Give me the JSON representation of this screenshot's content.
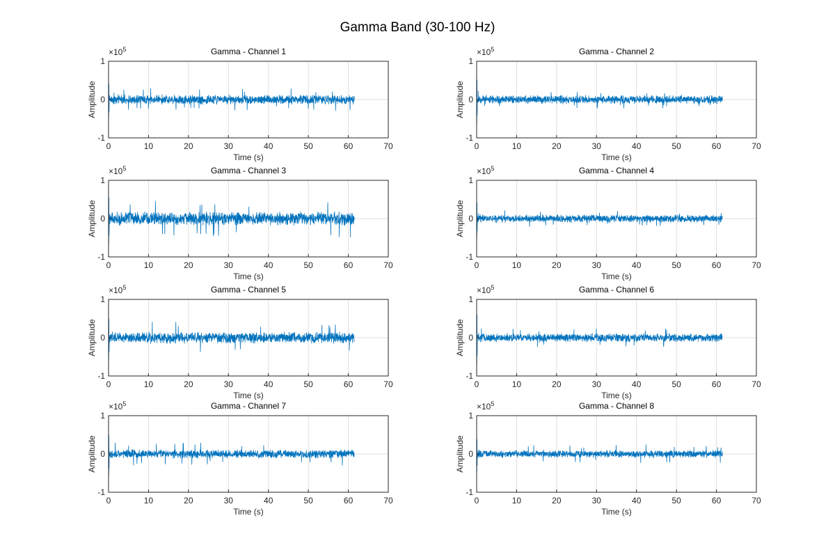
{
  "figure": {
    "title": "Gamma Band (30-100 Hz)",
    "line_color": "#0072BD",
    "grid_color": "#dedede"
  },
  "chart_data": [
    {
      "type": "line",
      "title": "Gamma - Channel 1",
      "xlabel": "Time (s)",
      "ylabel": "Amplitude",
      "y_exponent_label": "×10",
      "y_exponent": "5",
      "xlim": [
        0,
        70
      ],
      "ylim": [
        -1,
        1
      ],
      "xticks": [
        0,
        10,
        20,
        30,
        40,
        50,
        60,
        70
      ],
      "yticks": [
        -1,
        0,
        1
      ],
      "grid": true,
      "signal_duration_s": 61.5,
      "signal_envelope": {
        "typical_amplitude": 0.1,
        "peak_amplitude": 0.3,
        "initial_transient": 0.6
      },
      "series": [
        {
          "values": []
        }
      ]
    },
    {
      "type": "line",
      "title": "Gamma - Channel 2",
      "xlabel": "Time (s)",
      "ylabel": "Amplitude",
      "y_exponent_label": "×10",
      "y_exponent": "5",
      "xlim": [
        0,
        70
      ],
      "ylim": [
        -1,
        1
      ],
      "xticks": [
        0,
        10,
        20,
        30,
        40,
        50,
        60,
        70
      ],
      "yticks": [
        -1,
        0,
        1
      ],
      "grid": true,
      "signal_duration_s": 61.5,
      "signal_envelope": {
        "typical_amplitude": 0.09,
        "peak_amplitude": 0.23,
        "initial_transient": 0.75
      },
      "series": [
        {
          "values": []
        }
      ]
    },
    {
      "type": "line",
      "title": "Gamma - Channel 3",
      "xlabel": "Time (s)",
      "ylabel": "Amplitude",
      "y_exponent_label": "×10",
      "y_exponent": "5",
      "xlim": [
        0,
        70
      ],
      "ylim": [
        -1,
        1
      ],
      "xticks": [
        0,
        10,
        20,
        30,
        40,
        50,
        60,
        70
      ],
      "yticks": [
        -1,
        0,
        1
      ],
      "grid": true,
      "signal_duration_s": 61.5,
      "signal_envelope": {
        "typical_amplitude": 0.14,
        "peak_amplitude": 0.5,
        "initial_transient": 0.8
      },
      "series": [
        {
          "values": []
        }
      ]
    },
    {
      "type": "line",
      "title": "Gamma - Channel 4",
      "xlabel": "Time (s)",
      "ylabel": "Amplitude",
      "y_exponent_label": "×10",
      "y_exponent": "5",
      "xlim": [
        0,
        70
      ],
      "ylim": [
        -1,
        1
      ],
      "xticks": [
        0,
        10,
        20,
        30,
        40,
        50,
        60,
        70
      ],
      "yticks": [
        -1,
        0,
        1
      ],
      "grid": true,
      "signal_duration_s": 61.5,
      "signal_envelope": {
        "typical_amplitude": 0.08,
        "peak_amplitude": 0.22,
        "initial_transient": 0.6
      },
      "series": [
        {
          "values": []
        }
      ]
    },
    {
      "type": "line",
      "title": "Gamma - Channel 5",
      "xlabel": "Time (s)",
      "ylabel": "Amplitude",
      "y_exponent_label": "×10",
      "y_exponent": "5",
      "xlim": [
        0,
        70
      ],
      "ylim": [
        -1,
        1
      ],
      "xticks": [
        0,
        10,
        20,
        30,
        40,
        50,
        60,
        70
      ],
      "yticks": [
        -1,
        0,
        1
      ],
      "grid": true,
      "signal_duration_s": 61.5,
      "signal_envelope": {
        "typical_amplitude": 0.12,
        "peak_amplitude": 0.45,
        "initial_transient": 0.7
      },
      "series": [
        {
          "values": []
        }
      ]
    },
    {
      "type": "line",
      "title": "Gamma - Channel 6",
      "xlabel": "Time (s)",
      "ylabel": "Amplitude",
      "y_exponent_label": "×10",
      "y_exponent": "5",
      "xlim": [
        0,
        70
      ],
      "ylim": [
        -1,
        1
      ],
      "xticks": [
        0,
        10,
        20,
        30,
        40,
        50,
        60,
        70
      ],
      "yticks": [
        -1,
        0,
        1
      ],
      "grid": true,
      "signal_duration_s": 61.5,
      "signal_envelope": {
        "typical_amplitude": 0.09,
        "peak_amplitude": 0.25,
        "initial_transient": 0.85
      },
      "series": [
        {
          "values": []
        }
      ]
    },
    {
      "type": "line",
      "title": "Gamma - Channel 7",
      "xlabel": "Time (s)",
      "ylabel": "Amplitude",
      "y_exponent_label": "×10",
      "y_exponent": "5",
      "xlim": [
        0,
        70
      ],
      "ylim": [
        -1,
        1
      ],
      "xticks": [
        0,
        10,
        20,
        30,
        40,
        50,
        60,
        70
      ],
      "yticks": [
        -1,
        0,
        1
      ],
      "grid": true,
      "signal_duration_s": 61.5,
      "signal_envelope": {
        "typical_amplitude": 0.09,
        "peak_amplitude": 0.3,
        "initial_transient": 0.7
      },
      "series": [
        {
          "values": []
        }
      ]
    },
    {
      "type": "line",
      "title": "Gamma - Channel 8",
      "xlabel": "Time (s)",
      "ylabel": "Amplitude",
      "y_exponent_label": "×10",
      "y_exponent": "5",
      "xlim": [
        0,
        70
      ],
      "ylim": [
        -1,
        1
      ],
      "xticks": [
        0,
        10,
        20,
        30,
        40,
        50,
        60,
        70
      ],
      "yticks": [
        -1,
        0,
        1
      ],
      "grid": true,
      "signal_duration_s": 61.5,
      "signal_envelope": {
        "typical_amplitude": 0.08,
        "peak_amplitude": 0.25,
        "initial_transient": 0.55
      },
      "series": [
        {
          "values": []
        }
      ]
    }
  ]
}
